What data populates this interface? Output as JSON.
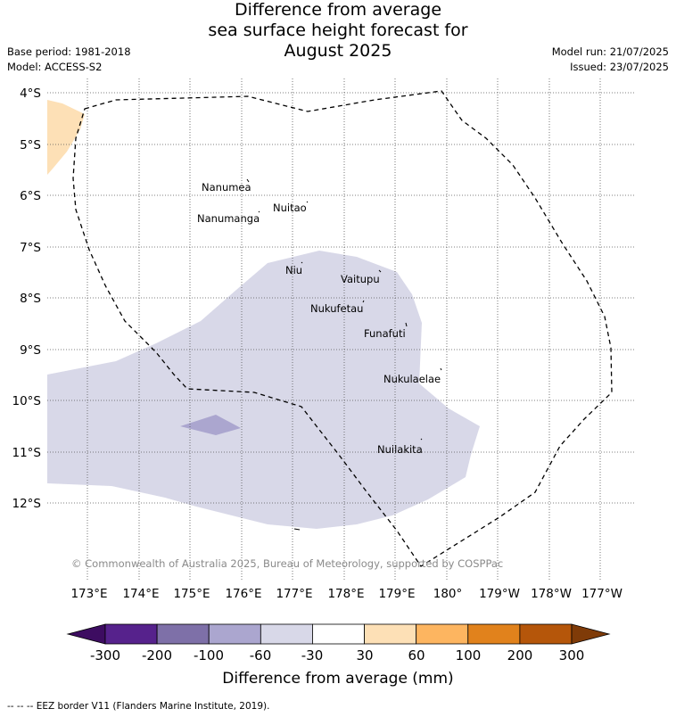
{
  "title": {
    "line1": "Difference from average",
    "line2": "sea surface height forecast for",
    "line3": "August 2025"
  },
  "meta_left": {
    "base_period": "Base period: 1981-2018",
    "model": "Model: ACCESS-S2"
  },
  "meta_right": {
    "model_run": "Model run: 21/07/2025",
    "issued": "Issued: 23/07/2025"
  },
  "map": {
    "lat_labels": [
      "4°S",
      "5°S",
      "6°S",
      "7°S",
      "8°S",
      "9°S",
      "10°S",
      "11°S",
      "12°S"
    ],
    "lon_labels": [
      "173°E",
      "174°E",
      "175°E",
      "176°E",
      "177°E",
      "178°E",
      "179°E",
      "180°",
      "179°W",
      "178°W",
      "177°W"
    ],
    "places": [
      "Nanumea",
      "Nuitao",
      "Nanumanga",
      "Niu",
      "Vaitupu",
      "Nukufetau",
      "Funafuti",
      "Nukulaelae",
      "Nuilakita"
    ],
    "copyright": "© Commonwealth of Australia 2025, Bureau of Meteorology, supported by COSPPac",
    "colors": {
      "anomaly_neg_30_60": "#d8d8e8",
      "anomaly_neg_60_100": "#aba6cf",
      "anomaly_pos_30_60": "#fde0b6"
    }
  },
  "colorbar": {
    "title": "Difference from average (mm)",
    "ticks": [
      "-300",
      "-200",
      "-100",
      "-60",
      "-30",
      "30",
      "60",
      "100",
      "200",
      "300"
    ],
    "colors": [
      "#3d0c61",
      "#56228c",
      "#7e70a8",
      "#aba6cf",
      "#d8d8e8",
      "#ffffff",
      "#fde0b6",
      "#fdb560",
      "#e1821c",
      "#b5560a",
      "#7f3b08"
    ]
  },
  "footer": "-- -- -- EEZ border V11 (Flanders Marine Institute, 2019)."
}
